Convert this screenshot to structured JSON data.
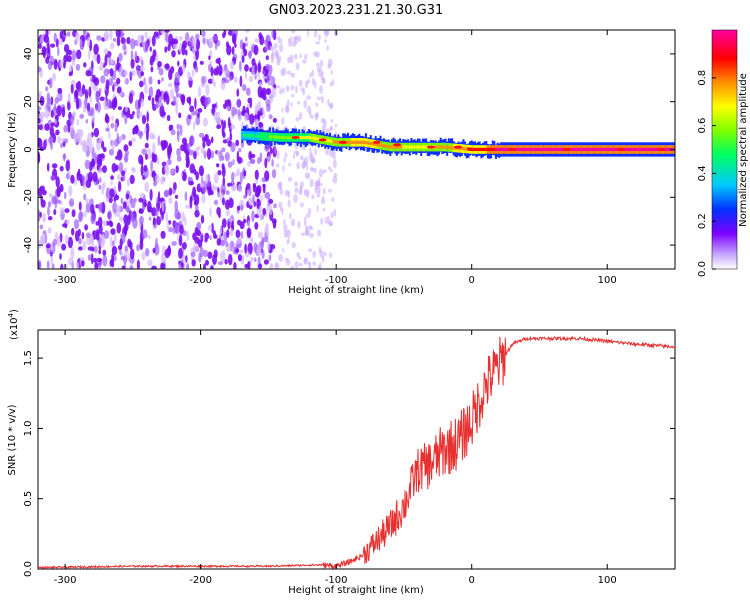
{
  "chart_data": [
    {
      "type": "heatmap",
      "title": "GN03.2023.231.21.30.G31",
      "xlabel": "Height of straight line (km)",
      "ylabel": "Frequency (Hz)",
      "xlim": [
        -320,
        150
      ],
      "ylim": [
        -50,
        50
      ],
      "x_ticks": [
        -300,
        -200,
        -100,
        0,
        100
      ],
      "y_ticks": [
        -40,
        -20,
        0,
        20,
        40
      ],
      "colorbar": {
        "label": "Normalized spectral amplitude",
        "range": [
          0,
          1
        ],
        "ticks": [
          0.0,
          0.2,
          0.4,
          0.6,
          0.8
        ],
        "colormap": "rainbow",
        "colors": [
          "#ffffff",
          "#c8a8ff",
          "#7a00ff",
          "#0040ff",
          "#00e0ff",
          "#00ff40",
          "#ffff00",
          "#ff8000",
          "#ff0000",
          "#ff00a0"
        ]
      },
      "ridge": {
        "description_points_x": [
          -170,
          -140,
          -120,
          -100,
          -80,
          -60,
          -40,
          -20,
          0,
          20,
          150
        ],
        "frequency_hz": [
          6,
          5,
          5,
          3,
          3,
          1,
          1,
          1,
          0,
          0,
          0
        ],
        "amplitude": [
          0.35,
          0.55,
          0.6,
          0.7,
          0.75,
          0.7,
          0.65,
          0.7,
          0.8,
          0.9,
          0.9
        ]
      }
    },
    {
      "type": "line",
      "xlabel": "Height of straight line (km)",
      "ylabel": "SNR (10 * v/v)",
      "y_multiplier": "(x10",
      "y_multiplier_exp": "4",
      "y_multiplier_close": ")",
      "xlim": [
        -320,
        150
      ],
      "ylim": [
        0,
        1.7
      ],
      "x_ticks": [
        -300,
        -200,
        -100,
        0,
        100
      ],
      "y_ticks": [
        0.0,
        0.5,
        1.0,
        1.5
      ],
      "color": "#e83030",
      "series": [
        {
          "x": [
            -320,
            -250,
            -200,
            -150,
            -110,
            -100,
            -90,
            -80,
            -70,
            -60,
            -50,
            -40,
            -30,
            -20,
            -10,
            0,
            10,
            20,
            30,
            40,
            60,
            80,
            100,
            120,
            150
          ],
          "y": [
            0.01,
            0.02,
            0.02,
            0.02,
            0.03,
            0.02,
            0.05,
            0.1,
            0.2,
            0.3,
            0.45,
            0.7,
            0.75,
            0.85,
            0.9,
            1.05,
            1.3,
            1.45,
            1.6,
            1.64,
            1.64,
            1.64,
            1.62,
            1.6,
            1.58
          ]
        }
      ]
    }
  ]
}
